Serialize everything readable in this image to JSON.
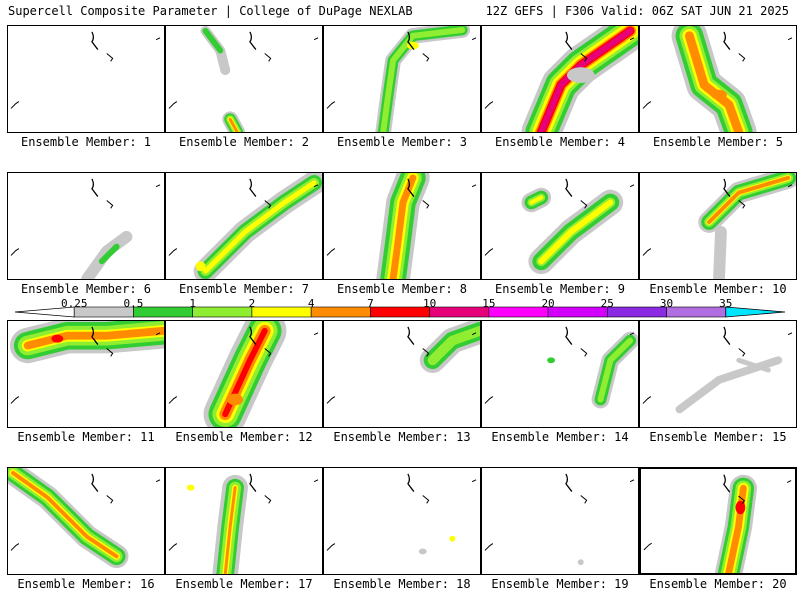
{
  "header": {
    "left": "Supercell Composite Parameter | College of DuPage NEXLAB",
    "right": "12Z GEFS | F306 Valid: 06Z SAT JUN 21 2025"
  },
  "member_label_prefix": "Ensemble Member: ",
  "members": [
    {
      "id": "1",
      "label": "Ensemble Member: 1"
    },
    {
      "id": "2",
      "label": "Ensemble Member: 2"
    },
    {
      "id": "3",
      "label": "Ensemble Member: 3"
    },
    {
      "id": "4",
      "label": "Ensemble Member: 4"
    },
    {
      "id": "5",
      "label": "Ensemble Member: 5"
    },
    {
      "id": "6",
      "label": "Ensemble Member: 6"
    },
    {
      "id": "7",
      "label": "Ensemble Member: 7"
    },
    {
      "id": "8",
      "label": "Ensemble Member: 8"
    },
    {
      "id": "9",
      "label": "Ensemble Member: 9"
    },
    {
      "id": "10",
      "label": "Ensemble Member: 10"
    },
    {
      "id": "11",
      "label": "Ensemble Member: 11"
    },
    {
      "id": "12",
      "label": "Ensemble Member: 12"
    },
    {
      "id": "13",
      "label": "Ensemble Member: 13"
    },
    {
      "id": "14",
      "label": "Ensemble Member: 14"
    },
    {
      "id": "15",
      "label": "Ensemble Member: 15"
    },
    {
      "id": "16",
      "label": "Ensemble Member: 16"
    },
    {
      "id": "17",
      "label": "Ensemble Member: 17"
    },
    {
      "id": "18",
      "label": "Ensemble Member: 18"
    },
    {
      "id": "19",
      "label": "Ensemble Member: 19"
    },
    {
      "id": "20",
      "label": "Ensemble Member: 20"
    }
  ],
  "selected_member": "20",
  "colorbar": {
    "labels": [
      "0.25",
      "0.5",
      "1",
      "2",
      "4",
      "7",
      "10",
      "15",
      "20",
      "25",
      "30",
      "35"
    ],
    "colors": [
      "#c8c8c8",
      "#32cd32",
      "#90ee32",
      "#ffff00",
      "#ff8c00",
      "#ff0000",
      "#e6007a",
      "#ff00ff",
      "#d400ff",
      "#8a2be2",
      "#b06ee0",
      "#00e5ff"
    ]
  }
}
